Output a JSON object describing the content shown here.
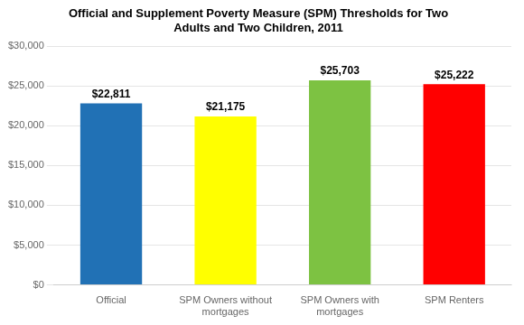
{
  "chart_data": {
    "type": "bar",
    "title": "Official and Supplement Poverty Measure (SPM) Thresholds for Two\nAdults and Two Children, 2011",
    "categories": [
      "Official",
      "SPM Owners without\nmortgages",
      "SPM Owners with\nmortgages",
      "SPM Renters"
    ],
    "values": [
      22811,
      21175,
      25703,
      25222
    ],
    "value_labels": [
      "$22,811",
      "$21,175",
      "$25,703",
      "$25,222"
    ],
    "colors": [
      "#2171B5",
      "#FFFF00",
      "#7DC242",
      "#FF0000"
    ],
    "ylim": [
      0,
      30000
    ],
    "yticks": [
      {
        "value": 0,
        "label": "$0"
      },
      {
        "value": 5000,
        "label": "$5,000"
      },
      {
        "value": 10000,
        "label": "$10,000"
      },
      {
        "value": 15000,
        "label": "$15,000"
      },
      {
        "value": 20000,
        "label": "$20,000"
      },
      {
        "value": 25000,
        "label": "$25,000"
      },
      {
        "value": 30000,
        "label": "$30,000"
      }
    ],
    "grid": true,
    "data_labels": true
  }
}
